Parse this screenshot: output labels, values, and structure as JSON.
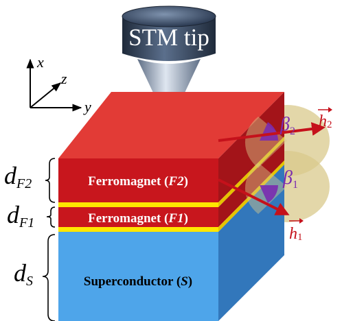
{
  "tip": {
    "label": "STM tip"
  },
  "axes": {
    "x": "x",
    "y": "y",
    "z": "z"
  },
  "layers": {
    "f2": {
      "name": "Ferromagnet (",
      "sym": "F2",
      "close": ")"
    },
    "f1": {
      "name": "Ferromagnet (",
      "sym": "F1",
      "close": ")"
    },
    "s": {
      "name": "Superconductor (",
      "sym": "S",
      "close": ")"
    }
  },
  "thickness": {
    "f2": {
      "base": "d",
      "sub": "F2"
    },
    "f1": {
      "base": "d",
      "sub": "F1"
    },
    "s": {
      "base": "d",
      "sub": "S"
    }
  },
  "angles": {
    "b2": {
      "base": "β",
      "sub": "2"
    },
    "b1": {
      "base": "β",
      "sub": "1"
    }
  },
  "fields": {
    "h2": {
      "base": "h",
      "sub": "2"
    },
    "h1": {
      "base": "h",
      "sub": "1"
    }
  },
  "colors": {
    "ferromagnet_front": "#c8161d",
    "ferromagnet_top": "#e23b36",
    "ferromagnet_side": "#a31419",
    "superconductor_front": "#4ea5ea",
    "superconductor_side": "#3277bb",
    "spacer": "#ffe600",
    "cone": "#d9c98c",
    "angle": "#7a2bb0",
    "arrow": "#c5111b",
    "tip_dark": "#3a4b63"
  }
}
